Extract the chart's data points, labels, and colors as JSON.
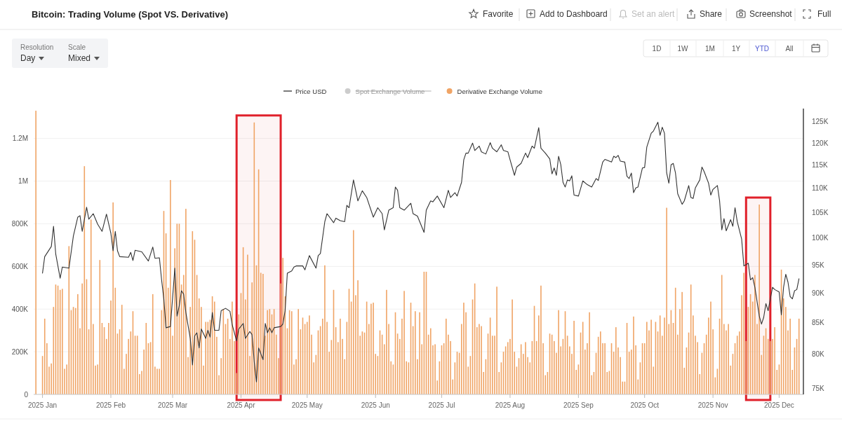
{
  "chart_data": {
    "type": "bar",
    "title": "Bitcoin: Trading Volume (Spot VS. Derivative)",
    "annotations": [
      "Favorite",
      "Add to Dashboard",
      "Set an alert",
      "Share",
      "Screenshot",
      "Full",
      "Resolution",
      "Day",
      "Scale",
      "Mixed",
      "1D",
      "1W",
      "1M",
      "1Y",
      "YTD",
      "All",
      "Spot Exchange Volume"
    ],
    "x": [
      "2024-12-29",
      "2025-01-01",
      "2025-01-02",
      "2025-01-03",
      "2025-01-04",
      "2025-01-05",
      "2025-01-06",
      "2025-01-07",
      "2025-01-08",
      "2025-01-09",
      "2025-01-10",
      "2025-01-11",
      "2025-01-12",
      "2025-01-13",
      "2025-01-14",
      "2025-01-15",
      "2025-01-16",
      "2025-01-17",
      "2025-01-18",
      "2025-01-19",
      "2025-01-20",
      "2025-01-21",
      "2025-01-22",
      "2025-01-23",
      "2025-01-24",
      "2025-01-25",
      "2025-01-26",
      "2025-01-27",
      "2025-01-28",
      "2025-01-29",
      "2025-01-30",
      "2025-01-31",
      "2025-02-01",
      "2025-02-02",
      "2025-02-03",
      "2025-02-04",
      "2025-02-05",
      "2025-02-06",
      "2025-02-07",
      "2025-02-08",
      "2025-02-09",
      "2025-02-10",
      "2025-02-11",
      "2025-02-12",
      "2025-02-13",
      "2025-02-14",
      "2025-02-15",
      "2025-02-16",
      "2025-02-17",
      "2025-02-18",
      "2025-02-19",
      "2025-02-20",
      "2025-02-21",
      "2025-02-22",
      "2025-02-23",
      "2025-02-24",
      "2025-02-25",
      "2025-02-26",
      "2025-02-27",
      "2025-02-28",
      "2025-03-01",
      "2025-03-02",
      "2025-03-03",
      "2025-03-04",
      "2025-03-05",
      "2025-03-06",
      "2025-03-07",
      "2025-03-08",
      "2025-03-09",
      "2025-03-10",
      "2025-03-11",
      "2025-03-12",
      "2025-03-13",
      "2025-03-14",
      "2025-03-15",
      "2025-03-16",
      "2025-03-17",
      "2025-03-18",
      "2025-03-19",
      "2025-03-20",
      "2025-03-21",
      "2025-03-22",
      "2025-03-23",
      "2025-03-24",
      "2025-03-25",
      "2025-03-26",
      "2025-03-27",
      "2025-03-28",
      "2025-03-29",
      "2025-03-30",
      "2025-03-31",
      "2025-04-01",
      "2025-04-02",
      "2025-04-03",
      "2025-04-04",
      "2025-04-05",
      "2025-04-06",
      "2025-04-07",
      "2025-04-08",
      "2025-04-09",
      "2025-04-10",
      "2025-04-11",
      "2025-04-12",
      "2025-04-13",
      "2025-04-14",
      "2025-04-15",
      "2025-04-16",
      "2025-04-17",
      "2025-04-18",
      "2025-04-19",
      "2025-04-20",
      "2025-04-21",
      "2025-04-22",
      "2025-04-23",
      "2025-04-24",
      "2025-04-25",
      "2025-04-26",
      "2025-04-27",
      "2025-04-28",
      "2025-04-29",
      "2025-04-30",
      "2025-05-01",
      "2025-05-02",
      "2025-05-03",
      "2025-05-04",
      "2025-05-05",
      "2025-05-06",
      "2025-05-07",
      "2025-05-08",
      "2025-05-09",
      "2025-05-10",
      "2025-05-11",
      "2025-05-12",
      "2025-05-13",
      "2025-05-14",
      "2025-05-15",
      "2025-05-16",
      "2025-05-17",
      "2025-05-18",
      "2025-05-19",
      "2025-05-20",
      "2025-05-21",
      "2025-05-22",
      "2025-05-23",
      "2025-05-24",
      "2025-05-25",
      "2025-05-26",
      "2025-05-27",
      "2025-05-28",
      "2025-05-29",
      "2025-05-30",
      "2025-05-31",
      "2025-06-01",
      "2025-06-02",
      "2025-06-03",
      "2025-06-04",
      "2025-06-05",
      "2025-06-06",
      "2025-06-07",
      "2025-06-08",
      "2025-06-09",
      "2025-06-10",
      "2025-06-11",
      "2025-06-12",
      "2025-06-13",
      "2025-06-14",
      "2025-06-15",
      "2025-06-16",
      "2025-06-17",
      "2025-06-18",
      "2025-06-19",
      "2025-06-20",
      "2025-06-21",
      "2025-06-22",
      "2025-06-23",
      "2025-06-24",
      "2025-06-25",
      "2025-06-26",
      "2025-06-27",
      "2025-06-28",
      "2025-06-29",
      "2025-06-30",
      "2025-07-01",
      "2025-07-02",
      "2025-07-03",
      "2025-07-04",
      "2025-07-05",
      "2025-07-06",
      "2025-07-07",
      "2025-07-08",
      "2025-07-09",
      "2025-07-10",
      "2025-07-11",
      "2025-07-12",
      "2025-07-13",
      "2025-07-14",
      "2025-07-15",
      "2025-07-16",
      "2025-07-17",
      "2025-07-18",
      "2025-07-19",
      "2025-07-20",
      "2025-07-21",
      "2025-07-22",
      "2025-07-23",
      "2025-07-24",
      "2025-07-25",
      "2025-07-26",
      "2025-07-27",
      "2025-07-28",
      "2025-07-29",
      "2025-07-30",
      "2025-07-31",
      "2025-08-01",
      "2025-08-02",
      "2025-08-03",
      "2025-08-04",
      "2025-08-05",
      "2025-08-06",
      "2025-08-07",
      "2025-08-08",
      "2025-08-09",
      "2025-08-10",
      "2025-08-11",
      "2025-08-12",
      "2025-08-13",
      "2025-08-14",
      "2025-08-15",
      "2025-08-16",
      "2025-08-17",
      "2025-08-18",
      "2025-08-19",
      "2025-08-20",
      "2025-08-21",
      "2025-08-22",
      "2025-08-23",
      "2025-08-24",
      "2025-08-25",
      "2025-08-26",
      "2025-08-27",
      "2025-08-28",
      "2025-08-29",
      "2025-08-30",
      "2025-08-31",
      "2025-09-01",
      "2025-09-02",
      "2025-09-03",
      "2025-09-04",
      "2025-09-05",
      "2025-09-06",
      "2025-09-07",
      "2025-09-08",
      "2025-09-09",
      "2025-09-10",
      "2025-09-11",
      "2025-09-12",
      "2025-09-13",
      "2025-09-14",
      "2025-09-15",
      "2025-09-16",
      "2025-09-17",
      "2025-09-18",
      "2025-09-19",
      "2025-09-20",
      "2025-09-21",
      "2025-09-22",
      "2025-09-23",
      "2025-09-24",
      "2025-09-25",
      "2025-09-26",
      "2025-09-27",
      "2025-09-28",
      "2025-09-29",
      "2025-09-30",
      "2025-10-01",
      "2025-10-02",
      "2025-10-03",
      "2025-10-04",
      "2025-10-05",
      "2025-10-06",
      "2025-10-07",
      "2025-10-08",
      "2025-10-09",
      "2025-10-10",
      "2025-10-11",
      "2025-10-12",
      "2025-10-13",
      "2025-10-14",
      "2025-10-15",
      "2025-10-16",
      "2025-10-17",
      "2025-10-18",
      "2025-10-19",
      "2025-10-20",
      "2025-10-21",
      "2025-10-22",
      "2025-10-23",
      "2025-10-24",
      "2025-10-25",
      "2025-10-26",
      "2025-10-27",
      "2025-10-28",
      "2025-10-29",
      "2025-10-30",
      "2025-10-31",
      "2025-11-01",
      "2025-11-02",
      "2025-11-03",
      "2025-11-04",
      "2025-11-05",
      "2025-11-06",
      "2025-11-07",
      "2025-11-08",
      "2025-11-09",
      "2025-11-10",
      "2025-11-11",
      "2025-11-12",
      "2025-11-13",
      "2025-11-14",
      "2025-11-15",
      "2025-11-16",
      "2025-11-17",
      "2025-11-18",
      "2025-11-19",
      "2025-11-20",
      "2025-11-21",
      "2025-11-22",
      "2025-11-23",
      "2025-11-24",
      "2025-11-25",
      "2025-11-26",
      "2025-11-27",
      "2025-11-28",
      "2025-11-29",
      "2025-11-30",
      "2025-12-01",
      "2025-12-02",
      "2025-12-03",
      "2025-12-04",
      "2025-12-05",
      "2025-12-06",
      "2025-12-07",
      "2025-12-08",
      "2025-12-09",
      "2025-12-10"
    ],
    "series": [
      {
        "name": "Price USD",
        "type": "line",
        "axis": "y2",
        "color": "#333333",
        "x": [
          "2025-01-01",
          "2025-01-02",
          "2025-01-05",
          "2025-01-06",
          "2025-01-07",
          "2025-01-09",
          "2025-01-10",
          "2025-01-13",
          "2025-01-15",
          "2025-01-17",
          "2025-01-18",
          "2025-01-19",
          "2025-01-21",
          "2025-01-22",
          "2025-01-24",
          "2025-01-26",
          "2025-01-28",
          "2025-01-30",
          "2025-02-01",
          "2025-02-02",
          "2025-02-03",
          "2025-02-04",
          "2025-02-05",
          "2025-02-09",
          "2025-02-10",
          "2025-02-11",
          "2025-02-12",
          "2025-02-15",
          "2025-02-18",
          "2025-02-20",
          "2025-02-21",
          "2025-02-23",
          "2025-02-24",
          "2025-02-25",
          "2025-02-26",
          "2025-02-28",
          "2025-03-02",
          "2025-03-03",
          "2025-03-04",
          "2025-03-05",
          "2025-03-06",
          "2025-03-07",
          "2025-03-09",
          "2025-03-10",
          "2025-03-11",
          "2025-03-12",
          "2025-03-13",
          "2025-03-14",
          "2025-03-16",
          "2025-03-17",
          "2025-03-18",
          "2025-03-19",
          "2025-03-20",
          "2025-03-22",
          "2025-03-23",
          "2025-03-25",
          "2025-03-27",
          "2025-03-28",
          "2025-03-30",
          "2025-03-31",
          "2025-04-02",
          "2025-04-03",
          "2025-04-05",
          "2025-04-06",
          "2025-04-07",
          "2025-04-08",
          "2025-04-09",
          "2025-04-11",
          "2025-04-12",
          "2025-04-13",
          "2025-04-14",
          "2025-04-15",
          "2025-04-16",
          "2025-04-19",
          "2025-04-20",
          "2025-04-21",
          "2025-04-22",
          "2025-04-24",
          "2025-04-25",
          "2025-04-26",
          "2025-04-29",
          "2025-04-30",
          "2025-05-02",
          "2025-05-05",
          "2025-05-06",
          "2025-05-07",
          "2025-05-09",
          "2025-05-10",
          "2025-05-13",
          "2025-05-14",
          "2025-05-16",
          "2025-05-18",
          "2025-05-19",
          "2025-05-20",
          "2025-05-22",
          "2025-05-24",
          "2025-05-26",
          "2025-05-28",
          "2025-05-31",
          "2025-06-02",
          "2025-06-04",
          "2025-06-05",
          "2025-06-07",
          "2025-06-09",
          "2025-06-10",
          "2025-06-11",
          "2025-06-12",
          "2025-06-14",
          "2025-06-17",
          "2025-06-18",
          "2025-06-20",
          "2025-06-23",
          "2025-06-24",
          "2025-06-26",
          "2025-06-27",
          "2025-06-29",
          "2025-07-02",
          "2025-07-04",
          "2025-07-05",
          "2025-07-07",
          "2025-07-08",
          "2025-07-10",
          "2025-07-11",
          "2025-07-12",
          "2025-07-13",
          "2025-07-15",
          "2025-07-16",
          "2025-07-18",
          "2025-07-19",
          "2025-07-21",
          "2025-07-23",
          "2025-07-24",
          "2025-07-26",
          "2025-07-28",
          "2025-07-29",
          "2025-07-31",
          "2025-08-01",
          "2025-08-03",
          "2025-08-04",
          "2025-08-06",
          "2025-08-08",
          "2025-08-09",
          "2025-08-11",
          "2025-08-12",
          "2025-08-14",
          "2025-08-15",
          "2025-08-17",
          "2025-08-19",
          "2025-08-20",
          "2025-08-21",
          "2025-08-22",
          "2025-08-23",
          "2025-08-24",
          "2025-08-25",
          "2025-08-26",
          "2025-08-27",
          "2025-08-28",
          "2025-08-29",
          "2025-08-30",
          "2025-09-01",
          "2025-09-03",
          "2025-09-05",
          "2025-09-07",
          "2025-09-09",
          "2025-09-10",
          "2025-09-12",
          "2025-09-13",
          "2025-09-16",
          "2025-09-17",
          "2025-09-18",
          "2025-09-19",
          "2025-09-20",
          "2025-09-22",
          "2025-09-23",
          "2025-09-24",
          "2025-09-25",
          "2025-09-26",
          "2025-09-27",
          "2025-09-28",
          "2025-09-30",
          "2025-10-01",
          "2025-10-02",
          "2025-10-04",
          "2025-10-05",
          "2025-10-07",
          "2025-10-08",
          "2025-10-09",
          "2025-10-10",
          "2025-10-11",
          "2025-10-12",
          "2025-10-13",
          "2025-10-14",
          "2025-10-15",
          "2025-10-16",
          "2025-10-18",
          "2025-10-19",
          "2025-10-21",
          "2025-10-22",
          "2025-10-23",
          "2025-10-24",
          "2025-10-26",
          "2025-10-27",
          "2025-10-28",
          "2025-10-30",
          "2025-10-31",
          "2025-11-01",
          "2025-11-03",
          "2025-11-04",
          "2025-11-05",
          "2025-11-06",
          "2025-11-07",
          "2025-11-09",
          "2025-11-10",
          "2025-11-11",
          "2025-11-12",
          "2025-11-14",
          "2025-11-15",
          "2025-11-17",
          "2025-11-18",
          "2025-11-19",
          "2025-11-20",
          "2025-11-22",
          "2025-11-23",
          "2025-11-24",
          "2025-11-25",
          "2025-11-26",
          "2025-11-28",
          "2025-11-29",
          "2025-12-01",
          "2025-12-02",
          "2025-12-03",
          "2025-12-04",
          "2025-12-05",
          "2025-12-06",
          "2025-12-07",
          "2025-12-08",
          "2025-12-09",
          "2025-12-10"
        ],
        "values": [
          93500,
          96500,
          98400,
          102300,
          97000,
          92600,
          94600,
          94400,
          100400,
          104100,
          104400,
          101300,
          106100,
          103700,
          104800,
          102700,
          101300,
          104700,
          100900,
          97600,
          101300,
          97600,
          96500,
          96400,
          97300,
          95800,
          97700,
          97400,
          95700,
          98300,
          96200,
          96300,
          92300,
          89000,
          84200,
          84400,
          94400,
          86100,
          87800,
          90400,
          89800,
          86700,
          82500,
          78400,
          82900,
          83400,
          81000,
          84000,
          82500,
          83800,
          82700,
          86700,
          83800,
          83800,
          87000,
          87400,
          86900,
          84700,
          82100,
          84000,
          84900,
          82500,
          83600,
          83100,
          78900,
          75900,
          81000,
          79200,
          84900,
          83400,
          84200,
          83400,
          84200,
          84400,
          84800,
          87000,
          93500,
          93900,
          94600,
          94800,
          94800,
          94100,
          96700,
          94400,
          96700,
          97100,
          103200,
          104800,
          103000,
          103900,
          103400,
          103200,
          106500,
          106000,
          111800,
          107400,
          109500,
          108100,
          104100,
          106000,
          104800,
          101600,
          105500,
          106000,
          110300,
          109600,
          106000,
          105500,
          106900,
          104800,
          104300,
          101100,
          105500,
          107400,
          107200,
          108400,
          106000,
          109600,
          108100,
          109100,
          108400,
          111300,
          116200,
          117700,
          117700,
          120000,
          118300,
          119300,
          118000,
          117500,
          120100,
          118800,
          118000,
          119600,
          118300,
          118000,
          116200,
          112800,
          114600,
          115400,
          117700,
          116700,
          119300,
          118800,
          123600,
          118800,
          117700,
          116400,
          113100,
          114400,
          112800,
          117000,
          115100,
          111300,
          110300,
          111800,
          111600,
          112700,
          108600,
          108400,
          111600,
          110800,
          110300,
          112100,
          111700,
          115700,
          116300,
          115700,
          117000,
          116700,
          117200,
          115900,
          115700,
          112600,
          112100,
          113300,
          109100,
          110100,
          110300,
          114400,
          114500,
          119100,
          122300,
          122800,
          124900,
          121800,
          123700,
          122300,
          113300,
          111100,
          115100,
          115400,
          113300,
          108900,
          106700,
          107400,
          110600,
          108100,
          107900,
          110100,
          111800,
          114600,
          113600,
          111100,
          108600,
          109800,
          110600,
          107400,
          101600,
          103800,
          101400,
          103600,
          102300,
          106000,
          103200,
          99800,
          94800,
          95300,
          92300,
          92700,
          91000,
          86100,
          84800,
          85900,
          88200,
          87000,
          91000,
          90600,
          90200,
          86300,
          91000,
          93300,
          91900,
          89400,
          89000,
          90400,
          90600,
          92500
        ]
      },
      {
        "name": "Derivative Exchange Volume",
        "color": "#f0a465",
        "values": [
          1330000,
          180000,
          355000,
          240000,
          130000,
          145000,
          410000,
          515000,
          510000,
          490000,
          495000,
          120000,
          140000,
          695000,
          395000,
          410000,
          405000,
          470000,
          310000,
          520000,
          1070000,
          540000,
          305000,
          820000,
          330000,
          135000,
          140000,
          630000,
          335000,
          315000,
          260000,
          335000,
          440000,
          900000,
          500000,
          285000,
          305000,
          420000,
          120000,
          190000,
          260000,
          295000,
          390000,
          275000,
          275000,
          95000,
          110000,
          210000,
          335000,
          240000,
          245000,
          470000,
          130000,
          120000,
          120000,
          395000,
          860000,
          755000,
          500000,
          1005000,
          275000,
          685000,
          800000,
          800000,
          515000,
          560000,
          870000,
          175000,
          410000,
          765000,
          725000,
          560000,
          450000,
          410000,
          135000,
          340000,
          340000,
          350000,
          460000,
          435000,
          270000,
          90000,
          170000,
          400000,
          330000,
          355000,
          260000,
          435000,
          250000,
          100000,
          375000,
          475000,
          690000,
          445000,
          655000,
          180000,
          525000,
          1275000,
          605000,
          1055000,
          570000,
          565000,
          275000,
          395000,
          400000,
          375000,
          400000,
          280000,
          170000,
          520000,
          640000,
          460000,
          310000,
          395000,
          390000,
          140000,
          165000,
          400000,
          305000,
          360000,
          330000,
          340000,
          370000,
          280000,
          150000,
          185000,
          300000,
          320000,
          355000,
          605000,
          340000,
          200000,
          255000,
          490000,
          315000,
          245000,
          355000,
          260000,
          165000,
          340000,
          495000,
          435000,
          770000,
          465000,
          535000,
          275000,
          295000,
          290000,
          435000,
          330000,
          425000,
          430000,
          190000,
          180000,
          300000,
          280000,
          235000,
          490000,
          330000,
          155000,
          140000,
          385000,
          285000,
          260000,
          355000,
          485000,
          155000,
          150000,
          430000,
          320000,
          390000,
          165000,
          385000,
          235000,
          575000,
          575000,
          280000,
          310000,
          230000,
          235000,
          65000,
          155000,
          230000,
          240000,
          355000,
          280000,
          250000,
          70000,
          150000,
          200000,
          195000,
          330000,
          430000,
          385000,
          130000,
          180000,
          445000,
          520000,
          315000,
          330000,
          320000,
          105000,
          165000,
          285000,
          360000,
          275000,
          275000,
          505000,
          105000,
          150000,
          200000,
          225000,
          245000,
          260000,
          445000,
          200000,
          130000,
          170000,
          235000,
          190000,
          245000,
          175000,
          150000,
          250000,
          415000,
          250000,
          370000,
          510000,
          240000,
          90000,
          105000,
          285000,
          280000,
          250000,
          195000,
          395000,
          225000,
          260000,
          390000,
          275000,
          225000,
          190000,
          345000,
          115000,
          140000,
          290000,
          340000,
          210000,
          240000,
          385000,
          90000,
          105000,
          195000,
          270000,
          295000,
          240000,
          240000,
          105000,
          110000,
          240000,
          200000,
          315000,
          220000,
          175000,
          60000,
          60000,
          335000,
          200000,
          210000,
          365000,
          230000,
          70000,
          150000,
          240000,
          240000,
          340000,
          300000,
          350000,
          130000,
          340000,
          295000,
          370000,
          275000,
          360000,
          875000,
          330000,
          395000,
          335000,
          500000,
          280000,
          400000,
          480000,
          125000,
          220000,
          290000,
          515000,
          370000,
          275000,
          245000,
          95000,
          195000,
          240000,
          280000,
          360000,
          435000,
          305000,
          80000,
          120000,
          355000,
          560000,
          330000,
          300000,
          330000,
          135000,
          190000,
          240000,
          275000,
          295000,
          465000,
          570000,
          250000,
          410000,
          470000,
          435000,
          560000,
          330000,
          890000,
          185000,
          275000,
          310000,
          260000,
          250000,
          260000,
          315000,
          115000,
          140000,
          585000,
          450000,
          410000,
          300000,
          355000,
          115000,
          220000,
          260000,
          355000
        ]
      }
    ],
    "xlim": [
      "2024-12-28",
      "2025-12-12"
    ],
    "xticks": [
      {
        "value": "2025-01-01",
        "label": "2025 Jan"
      },
      {
        "value": "2025-02-01",
        "label": "2025 Feb"
      },
      {
        "value": "2025-03-01",
        "label": "2025 Mar"
      },
      {
        "value": "2025-04-01",
        "label": "2025 Apr"
      },
      {
        "value": "2025-05-01",
        "label": "2025 May"
      },
      {
        "value": "2025-06-01",
        "label": "2025 Jun"
      },
      {
        "value": "2025-07-01",
        "label": "2025 Jul"
      },
      {
        "value": "2025-08-01",
        "label": "2025 Aug"
      },
      {
        "value": "2025-09-01",
        "label": "2025 Sep"
      },
      {
        "value": "2025-10-01",
        "label": "2025 Oct"
      },
      {
        "value": "2025-11-01",
        "label": "2025 Nov"
      },
      {
        "value": "2025-12-01",
        "label": "2025 Dec"
      }
    ],
    "ylim": [
      0,
      1340000
    ],
    "yticks": [
      0,
      {
        "value": 200000,
        "label": "200K"
      },
      {
        "value": 400000,
        "label": "400K"
      },
      {
        "value": 600000,
        "label": "600K"
      },
      {
        "value": 800000,
        "label": "800K"
      },
      {
        "value": 1000000,
        "label": "1M"
      },
      {
        "value": 1200000,
        "label": "1.2M"
      }
    ],
    "y2lim": [
      74100,
      128200
    ],
    "y2ticks": [
      {
        "value": 75000,
        "label": "75K"
      },
      {
        "value": 80000,
        "label": "80K"
      },
      {
        "value": 85000,
        "label": "85K"
      },
      {
        "value": 90000,
        "label": "90K"
      },
      {
        "value": 95000,
        "label": "95K"
      },
      {
        "value": 100000,
        "label": "100K"
      },
      {
        "value": 105000,
        "label": "105K"
      },
      {
        "value": 110000,
        "label": "110K"
      },
      {
        "value": 115000,
        "label": "115K"
      },
      {
        "value": 120000,
        "label": "120K"
      },
      {
        "value": 125000,
        "label": "125K"
      }
    ],
    "log": "y2",
    "grid": "y",
    "legend": "top",
    "bands": [
      {
        "axis": "x",
        "from": "2025-03-30",
        "to": "2025-04-19",
        "color": "#e0202a"
      },
      {
        "axis": "x",
        "from": "2025-11-16",
        "to": "2025-11-27",
        "color": "#e0202a"
      }
    ]
  }
}
